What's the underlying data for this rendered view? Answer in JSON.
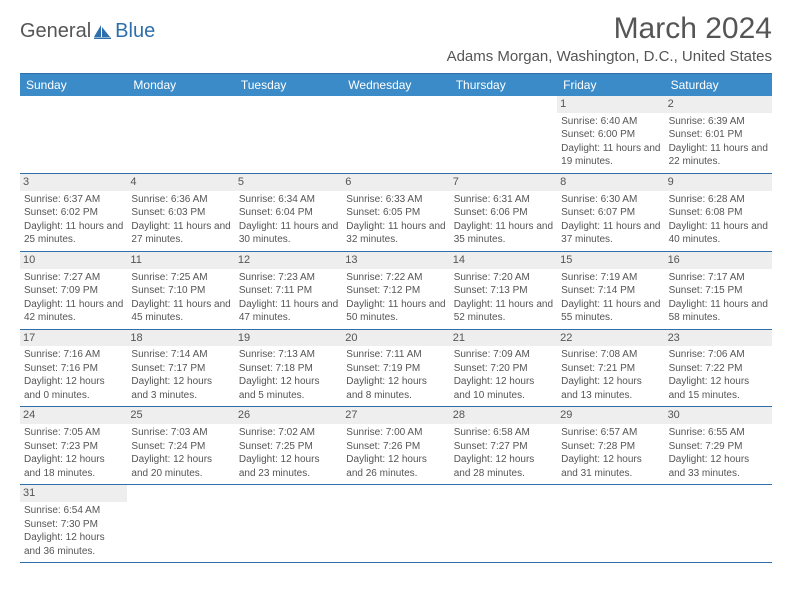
{
  "logo": {
    "part1": "General",
    "part2": "Blue"
  },
  "title": "March 2024",
  "location": "Adams Morgan, Washington, D.C., United States",
  "colors": {
    "header_bg": "#3b8bc9",
    "accent": "#2e6fab",
    "daynum_bg": "#eeeeee",
    "text": "#555555",
    "white": "#ffffff"
  },
  "dayHeaders": [
    "Sunday",
    "Monday",
    "Tuesday",
    "Wednesday",
    "Thursday",
    "Friday",
    "Saturday"
  ],
  "weeks": [
    [
      null,
      null,
      null,
      null,
      null,
      {
        "n": "1",
        "sr": "6:40 AM",
        "ss": "6:00 PM",
        "dl": "11 hours and 19 minutes."
      },
      {
        "n": "2",
        "sr": "6:39 AM",
        "ss": "6:01 PM",
        "dl": "11 hours and 22 minutes."
      }
    ],
    [
      {
        "n": "3",
        "sr": "6:37 AM",
        "ss": "6:02 PM",
        "dl": "11 hours and 25 minutes."
      },
      {
        "n": "4",
        "sr": "6:36 AM",
        "ss": "6:03 PM",
        "dl": "11 hours and 27 minutes."
      },
      {
        "n": "5",
        "sr": "6:34 AM",
        "ss": "6:04 PM",
        "dl": "11 hours and 30 minutes."
      },
      {
        "n": "6",
        "sr": "6:33 AM",
        "ss": "6:05 PM",
        "dl": "11 hours and 32 minutes."
      },
      {
        "n": "7",
        "sr": "6:31 AM",
        "ss": "6:06 PM",
        "dl": "11 hours and 35 minutes."
      },
      {
        "n": "8",
        "sr": "6:30 AM",
        "ss": "6:07 PM",
        "dl": "11 hours and 37 minutes."
      },
      {
        "n": "9",
        "sr": "6:28 AM",
        "ss": "6:08 PM",
        "dl": "11 hours and 40 minutes."
      }
    ],
    [
      {
        "n": "10",
        "sr": "7:27 AM",
        "ss": "7:09 PM",
        "dl": "11 hours and 42 minutes."
      },
      {
        "n": "11",
        "sr": "7:25 AM",
        "ss": "7:10 PM",
        "dl": "11 hours and 45 minutes."
      },
      {
        "n": "12",
        "sr": "7:23 AM",
        "ss": "7:11 PM",
        "dl": "11 hours and 47 minutes."
      },
      {
        "n": "13",
        "sr": "7:22 AM",
        "ss": "7:12 PM",
        "dl": "11 hours and 50 minutes."
      },
      {
        "n": "14",
        "sr": "7:20 AM",
        "ss": "7:13 PM",
        "dl": "11 hours and 52 minutes."
      },
      {
        "n": "15",
        "sr": "7:19 AM",
        "ss": "7:14 PM",
        "dl": "11 hours and 55 minutes."
      },
      {
        "n": "16",
        "sr": "7:17 AM",
        "ss": "7:15 PM",
        "dl": "11 hours and 58 minutes."
      }
    ],
    [
      {
        "n": "17",
        "sr": "7:16 AM",
        "ss": "7:16 PM",
        "dl": "12 hours and 0 minutes."
      },
      {
        "n": "18",
        "sr": "7:14 AM",
        "ss": "7:17 PM",
        "dl": "12 hours and 3 minutes."
      },
      {
        "n": "19",
        "sr": "7:13 AM",
        "ss": "7:18 PM",
        "dl": "12 hours and 5 minutes."
      },
      {
        "n": "20",
        "sr": "7:11 AM",
        "ss": "7:19 PM",
        "dl": "12 hours and 8 minutes."
      },
      {
        "n": "21",
        "sr": "7:09 AM",
        "ss": "7:20 PM",
        "dl": "12 hours and 10 minutes."
      },
      {
        "n": "22",
        "sr": "7:08 AM",
        "ss": "7:21 PM",
        "dl": "12 hours and 13 minutes."
      },
      {
        "n": "23",
        "sr": "7:06 AM",
        "ss": "7:22 PM",
        "dl": "12 hours and 15 minutes."
      }
    ],
    [
      {
        "n": "24",
        "sr": "7:05 AM",
        "ss": "7:23 PM",
        "dl": "12 hours and 18 minutes."
      },
      {
        "n": "25",
        "sr": "7:03 AM",
        "ss": "7:24 PM",
        "dl": "12 hours and 20 minutes."
      },
      {
        "n": "26",
        "sr": "7:02 AM",
        "ss": "7:25 PM",
        "dl": "12 hours and 23 minutes."
      },
      {
        "n": "27",
        "sr": "7:00 AM",
        "ss": "7:26 PM",
        "dl": "12 hours and 26 minutes."
      },
      {
        "n": "28",
        "sr": "6:58 AM",
        "ss": "7:27 PM",
        "dl": "12 hours and 28 minutes."
      },
      {
        "n": "29",
        "sr": "6:57 AM",
        "ss": "7:28 PM",
        "dl": "12 hours and 31 minutes."
      },
      {
        "n": "30",
        "sr": "6:55 AM",
        "ss": "7:29 PM",
        "dl": "12 hours and 33 minutes."
      }
    ],
    [
      {
        "n": "31",
        "sr": "6:54 AM",
        "ss": "7:30 PM",
        "dl": "12 hours and 36 minutes."
      },
      null,
      null,
      null,
      null,
      null,
      null
    ]
  ],
  "labels": {
    "sunrise": "Sunrise: ",
    "sunset": "Sunset: ",
    "daylight": "Daylight: "
  }
}
